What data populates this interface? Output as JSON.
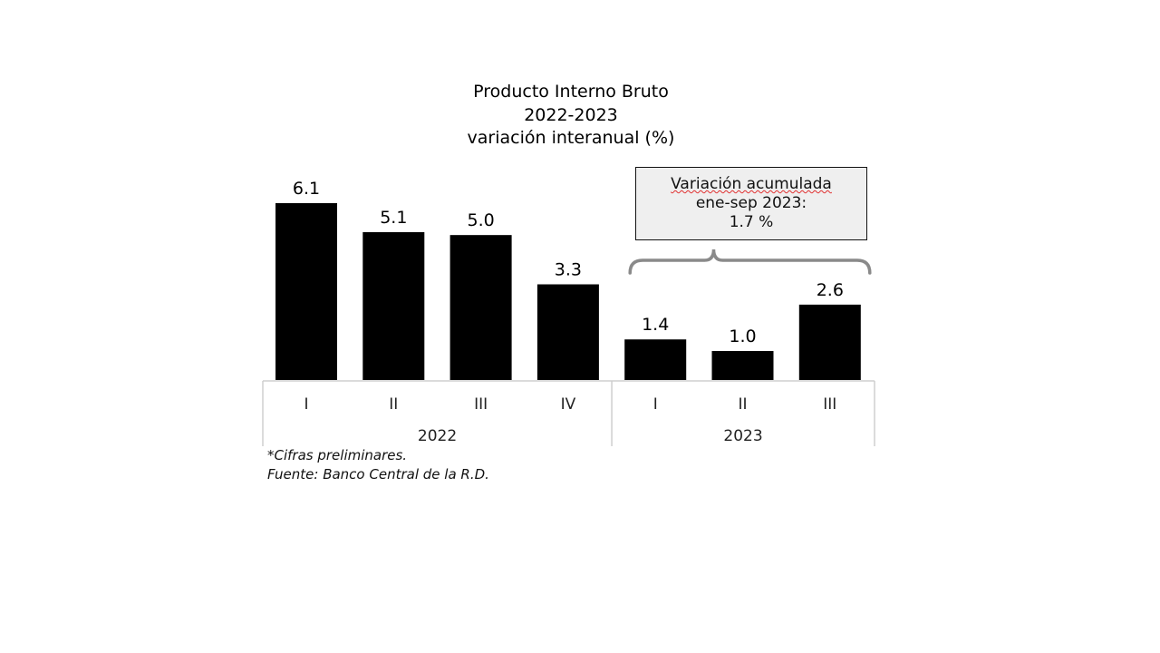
{
  "chart_data": {
    "type": "bar",
    "title": [
      "Producto Interno Bruto",
      "2022-2023",
      "variación interanual (%)"
    ],
    "categories": [
      "I",
      "II",
      "III",
      "IV",
      "I",
      "II",
      "III"
    ],
    "groups": [
      {
        "label": "2022",
        "count": 4
      },
      {
        "label": "2023",
        "count": 3
      }
    ],
    "values": [
      6.1,
      5.1,
      5.0,
      3.3,
      1.4,
      1.0,
      2.6
    ],
    "data_labels": [
      "6.1",
      "5.1",
      "5.0",
      "3.3",
      "1.4",
      "1.0",
      "2.6"
    ],
    "ylim": [
      0,
      6.1
    ],
    "bar_color": "#000000",
    "grid": false,
    "annotation": {
      "lines": [
        "Variación acumulada",
        "ene-sep 2023:",
        "1.7 %"
      ],
      "spans_group": "2023"
    }
  },
  "notes": [
    "*Cifras preliminares.",
    "Fuente: Banco Central de la R.D."
  ]
}
